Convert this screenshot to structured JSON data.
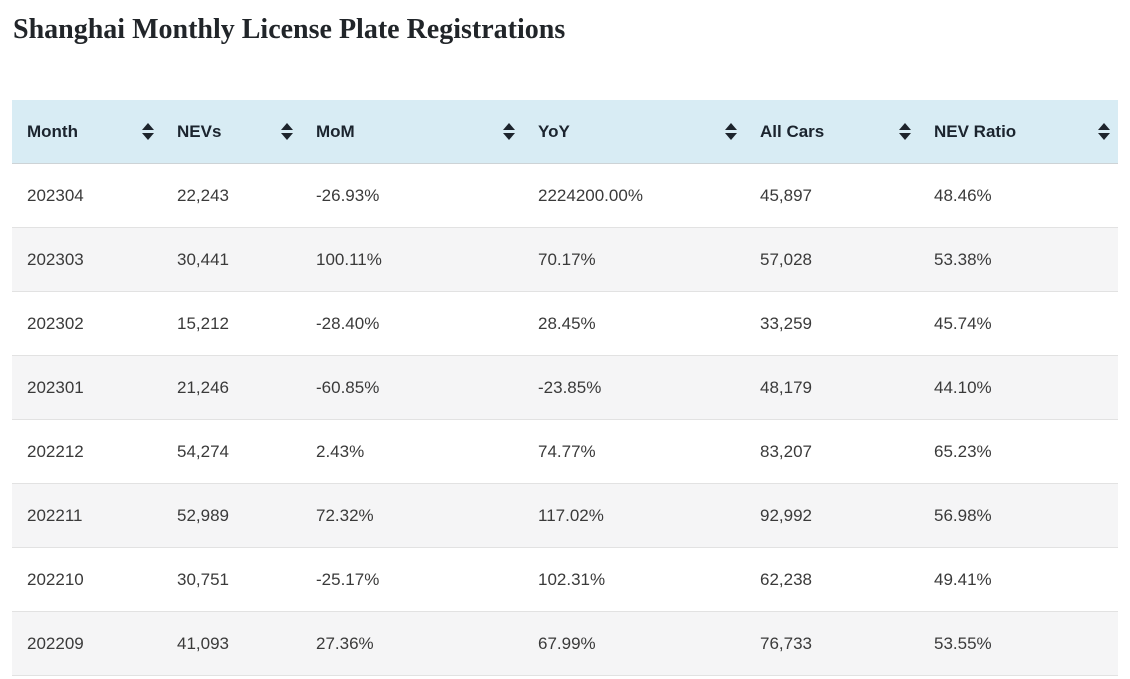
{
  "page": {
    "title": "Shanghai Monthly License Plate Registrations"
  },
  "colors": {
    "header_bg": "#d8ecf4",
    "stripe_bg": "#f5f5f6",
    "row_border": "#e2e2e2",
    "header_border": "#cdd3d6",
    "header_text": "#1b242e",
    "cell_text": "#3a3a3a",
    "sort_icon": "#1d242c"
  },
  "icons": {
    "sort": "sort-updown-icon"
  },
  "chart_data": {
    "type": "table",
    "title": "Shanghai Monthly License Plate Registrations",
    "columns": [
      "Month",
      "NEVs",
      "MoM",
      "YoY",
      "All Cars",
      "NEV Ratio"
    ],
    "sortable": true,
    "rows": [
      [
        "202304",
        "22,243",
        "-26.93%",
        "2224200.00%",
        "45,897",
        "48.46%"
      ],
      [
        "202303",
        "30,441",
        "100.11%",
        "70.17%",
        "57,028",
        "53.38%"
      ],
      [
        "202302",
        "15,212",
        "-28.40%",
        "28.45%",
        "33,259",
        "45.74%"
      ],
      [
        "202301",
        "21,246",
        "-60.85%",
        "-23.85%",
        "48,179",
        "44.10%"
      ],
      [
        "202212",
        "54,274",
        "2.43%",
        "74.77%",
        "83,207",
        "65.23%"
      ],
      [
        "202211",
        "52,989",
        "72.32%",
        "117.02%",
        "92,992",
        "56.98%"
      ],
      [
        "202210",
        "30,751",
        "-25.17%",
        "102.31%",
        "62,238",
        "49.41%"
      ],
      [
        "202209",
        "41,093",
        "27.36%",
        "67.99%",
        "76,733",
        "53.55%"
      ]
    ]
  }
}
